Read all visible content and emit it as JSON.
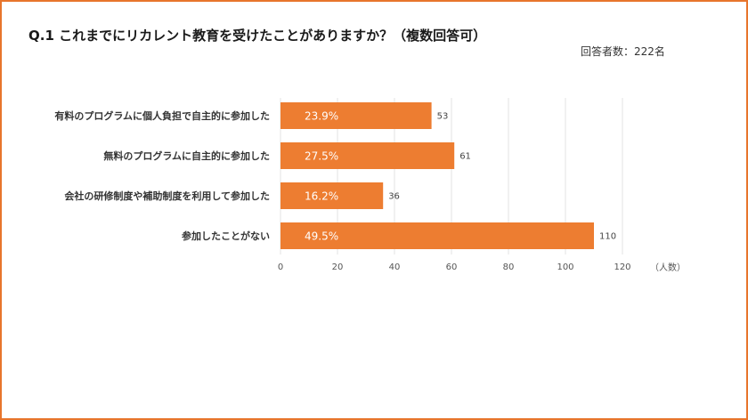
{
  "header": {
    "title": "Q.1 これまでにリカレント教育を受けたことがありますか？（複数回答可）",
    "respondents": "回答者数：222名"
  },
  "colors": {
    "bar": "#ed7d31",
    "border": "#e8752c",
    "grid": "#e3e3e3"
  },
  "chart_data": {
    "type": "bar",
    "orientation": "horizontal",
    "categories": [
      "有料のプログラムに個人負担で自主的に参加した",
      "無料のプログラムに自主的に参加した",
      "会社の研修制度や補助制度を利用して参加した",
      "参加したことがない"
    ],
    "values": [
      53,
      61,
      36,
      110
    ],
    "percent_labels": [
      "23.9%",
      "27.5%",
      "16.2%",
      "49.5%"
    ],
    "xlim": [
      0,
      120
    ],
    "xticks": [
      0,
      20,
      40,
      60,
      80,
      100,
      120
    ],
    "xunit": "（人数）",
    "grid": true
  }
}
